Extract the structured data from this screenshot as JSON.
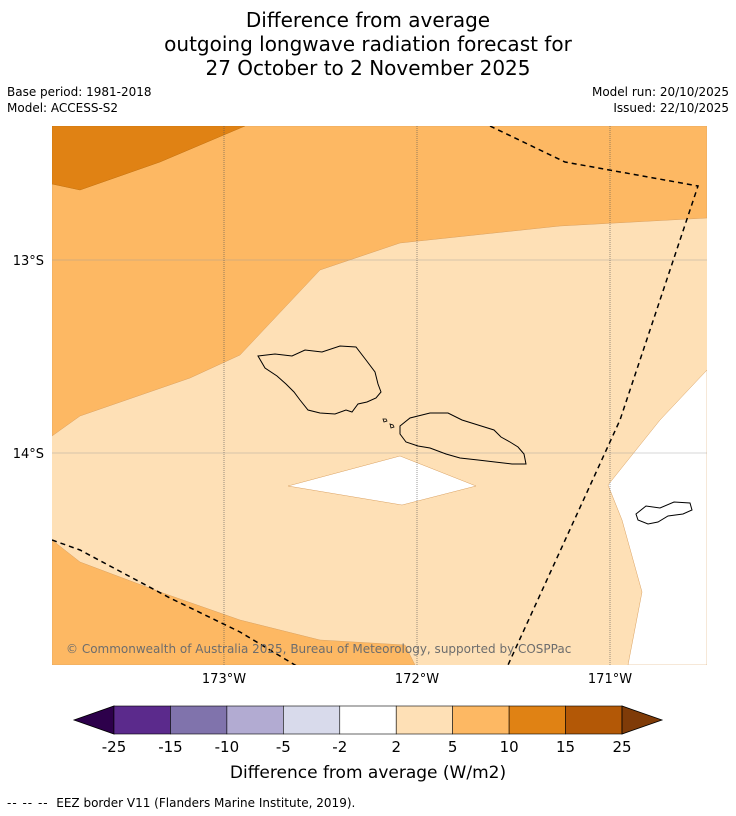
{
  "title": {
    "line1": "Difference from average",
    "line2": "outgoing longwave radiation forecast for",
    "line3": "27 October to 2 November 2025"
  },
  "meta": {
    "base_period": "Base period: 1981-2018",
    "model": "Model: ACCESS-S2",
    "model_run": "Model run: 20/10/2025",
    "issued": "Issued: 22/10/2025"
  },
  "map": {
    "lat_labels": [
      "13°S",
      "14°S"
    ],
    "lon_labels": [
      "173°W",
      "172°W",
      "171°W"
    ],
    "copyright": "© Commonwealth of Australia 2025, Bureau of Meteorology, supported by COSPPac"
  },
  "colorbar": {
    "tick_labels": [
      "-25",
      "-15",
      "-10",
      "-5",
      "-2",
      "2",
      "5",
      "10",
      "15",
      "25"
    ],
    "colors": [
      "#2d004b",
      "#5b2a8c",
      "#8073ac",
      "#b2abd2",
      "#d8daeb",
      "#ffffff",
      "#fee0b6",
      "#fdb863",
      "#e08214",
      "#b35806",
      "#7f3b08"
    ],
    "label": "Difference from average (W/m2)"
  },
  "legend_note": {
    "symbol": "-- -- --",
    "text": "EEZ border V11 (Flanders Marine Institute, 2019)."
  }
}
